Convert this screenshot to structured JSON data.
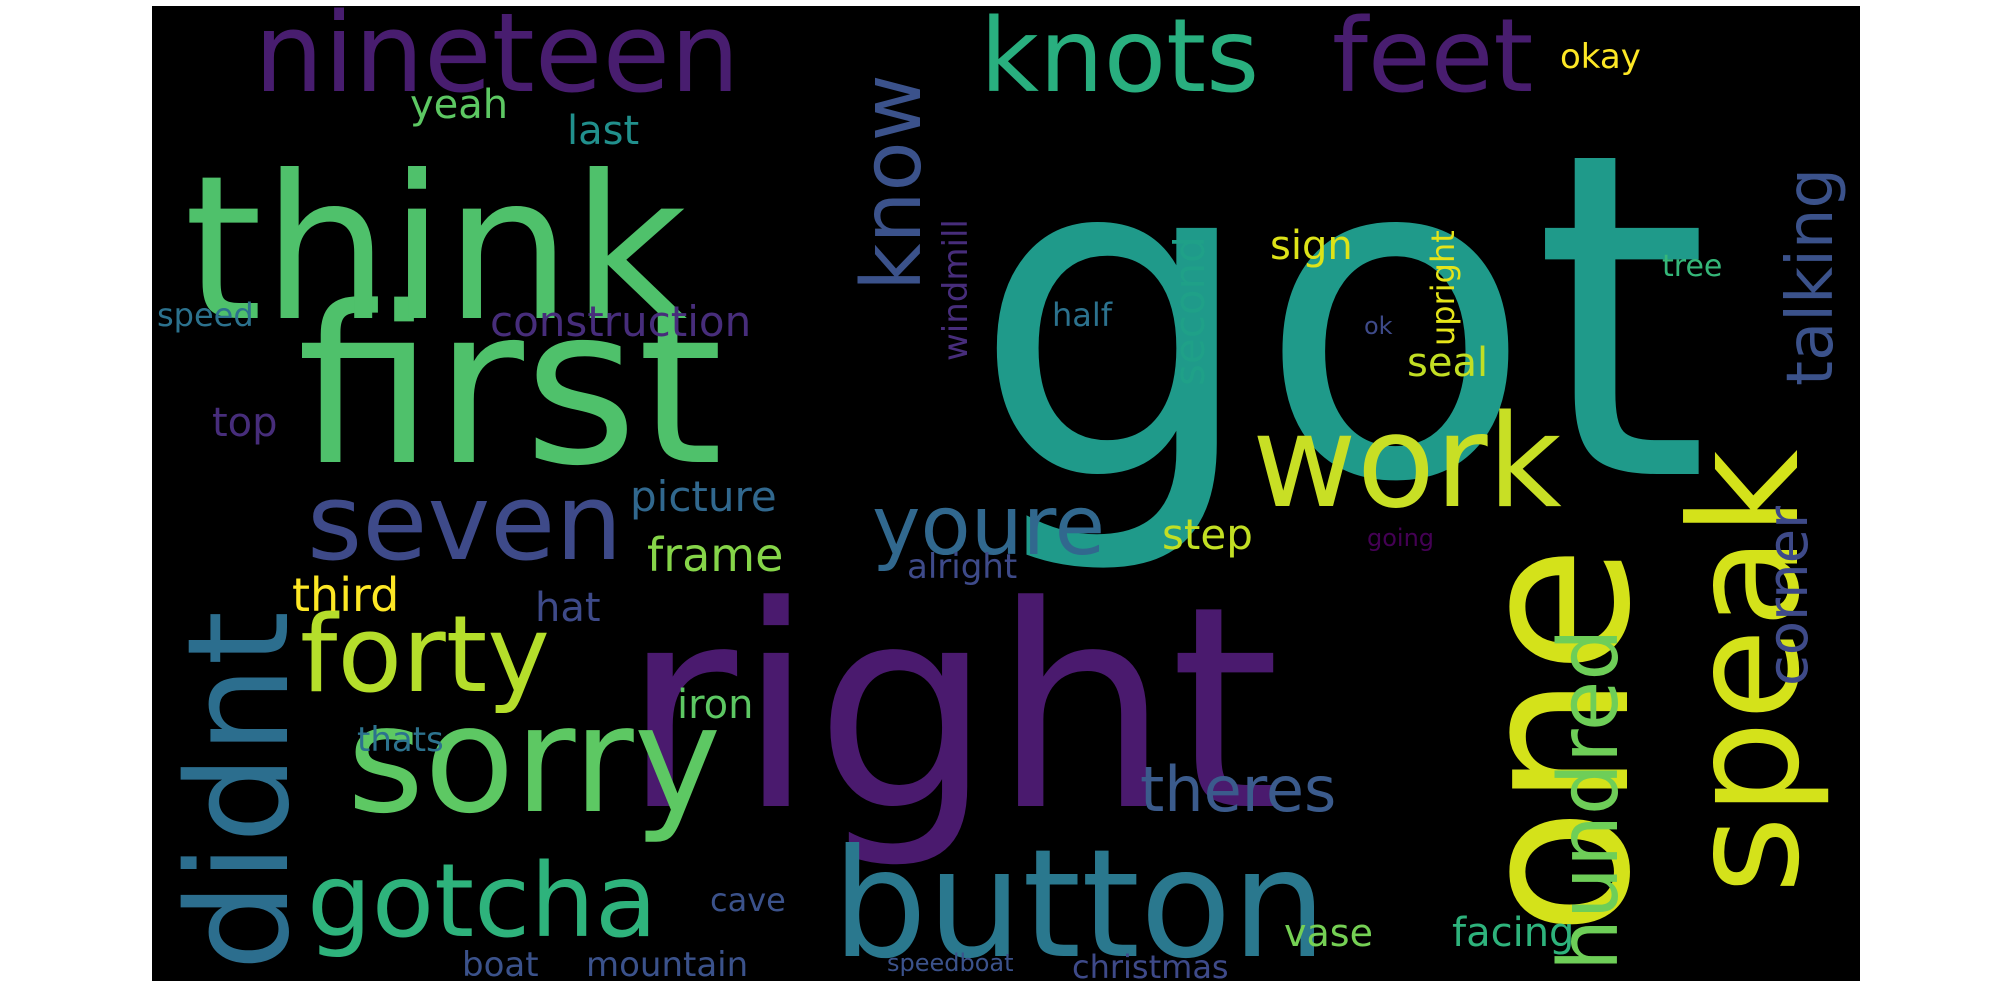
{
  "word_cloud": {
    "background": "#000000",
    "palette": [
      "#440154",
      "#3b528b",
      "#21908d",
      "#5dc863",
      "#fde725"
    ],
    "words": [
      {
        "text": "got",
        "color": "#1f9a8a"
      },
      {
        "text": "right",
        "color": "#4a1a6e"
      },
      {
        "text": "first",
        "color": "#4fc16b"
      },
      {
        "text": "think",
        "color": "#4fc16b"
      },
      {
        "text": "one",
        "color": "#d4e21a"
      },
      {
        "text": "button",
        "color": "#2a788e"
      },
      {
        "text": "sorry",
        "color": "#5dc863"
      },
      {
        "text": "speak",
        "color": "#d4e21a"
      },
      {
        "text": "didnt",
        "color": "#2c6e8e"
      },
      {
        "text": "nineteen",
        "color": "#481d6f"
      },
      {
        "text": "work",
        "color": "#c8df25"
      },
      {
        "text": "knots",
        "color": "#29af7f"
      },
      {
        "text": "feet",
        "color": "#481d6f"
      },
      {
        "text": "forty",
        "color": "#b5de2b"
      },
      {
        "text": "seven",
        "color": "#3e4a89"
      },
      {
        "text": "gotcha",
        "color": "#2eb37c"
      },
      {
        "text": "hundred",
        "color": "#6ece58"
      },
      {
        "text": "know",
        "color": "#3b528b"
      },
      {
        "text": "youre",
        "color": "#31688e"
      },
      {
        "text": "talking",
        "color": "#3b528b"
      },
      {
        "text": "theres",
        "color": "#3b5b8c"
      },
      {
        "text": "corner",
        "color": "#3e4a89"
      },
      {
        "text": "construction",
        "color": "#472d7b"
      },
      {
        "text": "picture",
        "color": "#31688e"
      },
      {
        "text": "frame",
        "color": "#86d549"
      },
      {
        "text": "third",
        "color": "#fde725"
      },
      {
        "text": "second",
        "color": "#1fa088"
      },
      {
        "text": "windmill",
        "color": "#472d7b"
      },
      {
        "text": "last",
        "color": "#21908d"
      },
      {
        "text": "yeah",
        "color": "#5dc863"
      },
      {
        "text": "okay",
        "color": "#fde725"
      },
      {
        "text": "sign",
        "color": "#dde318"
      },
      {
        "text": "step",
        "color": "#c2df23"
      },
      {
        "text": "seal",
        "color": "#c2df23"
      },
      {
        "text": "upright",
        "color": "#e5e419"
      },
      {
        "text": "speed",
        "color": "#2c728e"
      },
      {
        "text": "top",
        "color": "#472d7b"
      },
      {
        "text": "half",
        "color": "#2c728e"
      },
      {
        "text": "hat",
        "color": "#3e4a89"
      },
      {
        "text": "alright",
        "color": "#3e4a89"
      },
      {
        "text": "iron",
        "color": "#5dc863"
      },
      {
        "text": "thats",
        "color": "#2c728e"
      },
      {
        "text": "vase",
        "color": "#75d054"
      },
      {
        "text": "facing",
        "color": "#2eb37c"
      },
      {
        "text": "cave",
        "color": "#3b528b"
      },
      {
        "text": "boat",
        "color": "#3b528b"
      },
      {
        "text": "mountain",
        "color": "#3b528b"
      },
      {
        "text": "christmas",
        "color": "#3e4a89"
      },
      {
        "text": "speedboat",
        "color": "#3b528b"
      },
      {
        "text": "tree",
        "color": "#35b779"
      },
      {
        "text": "ok",
        "color": "#3e4a89"
      },
      {
        "text": "going",
        "color": "#440154"
      }
    ]
  }
}
